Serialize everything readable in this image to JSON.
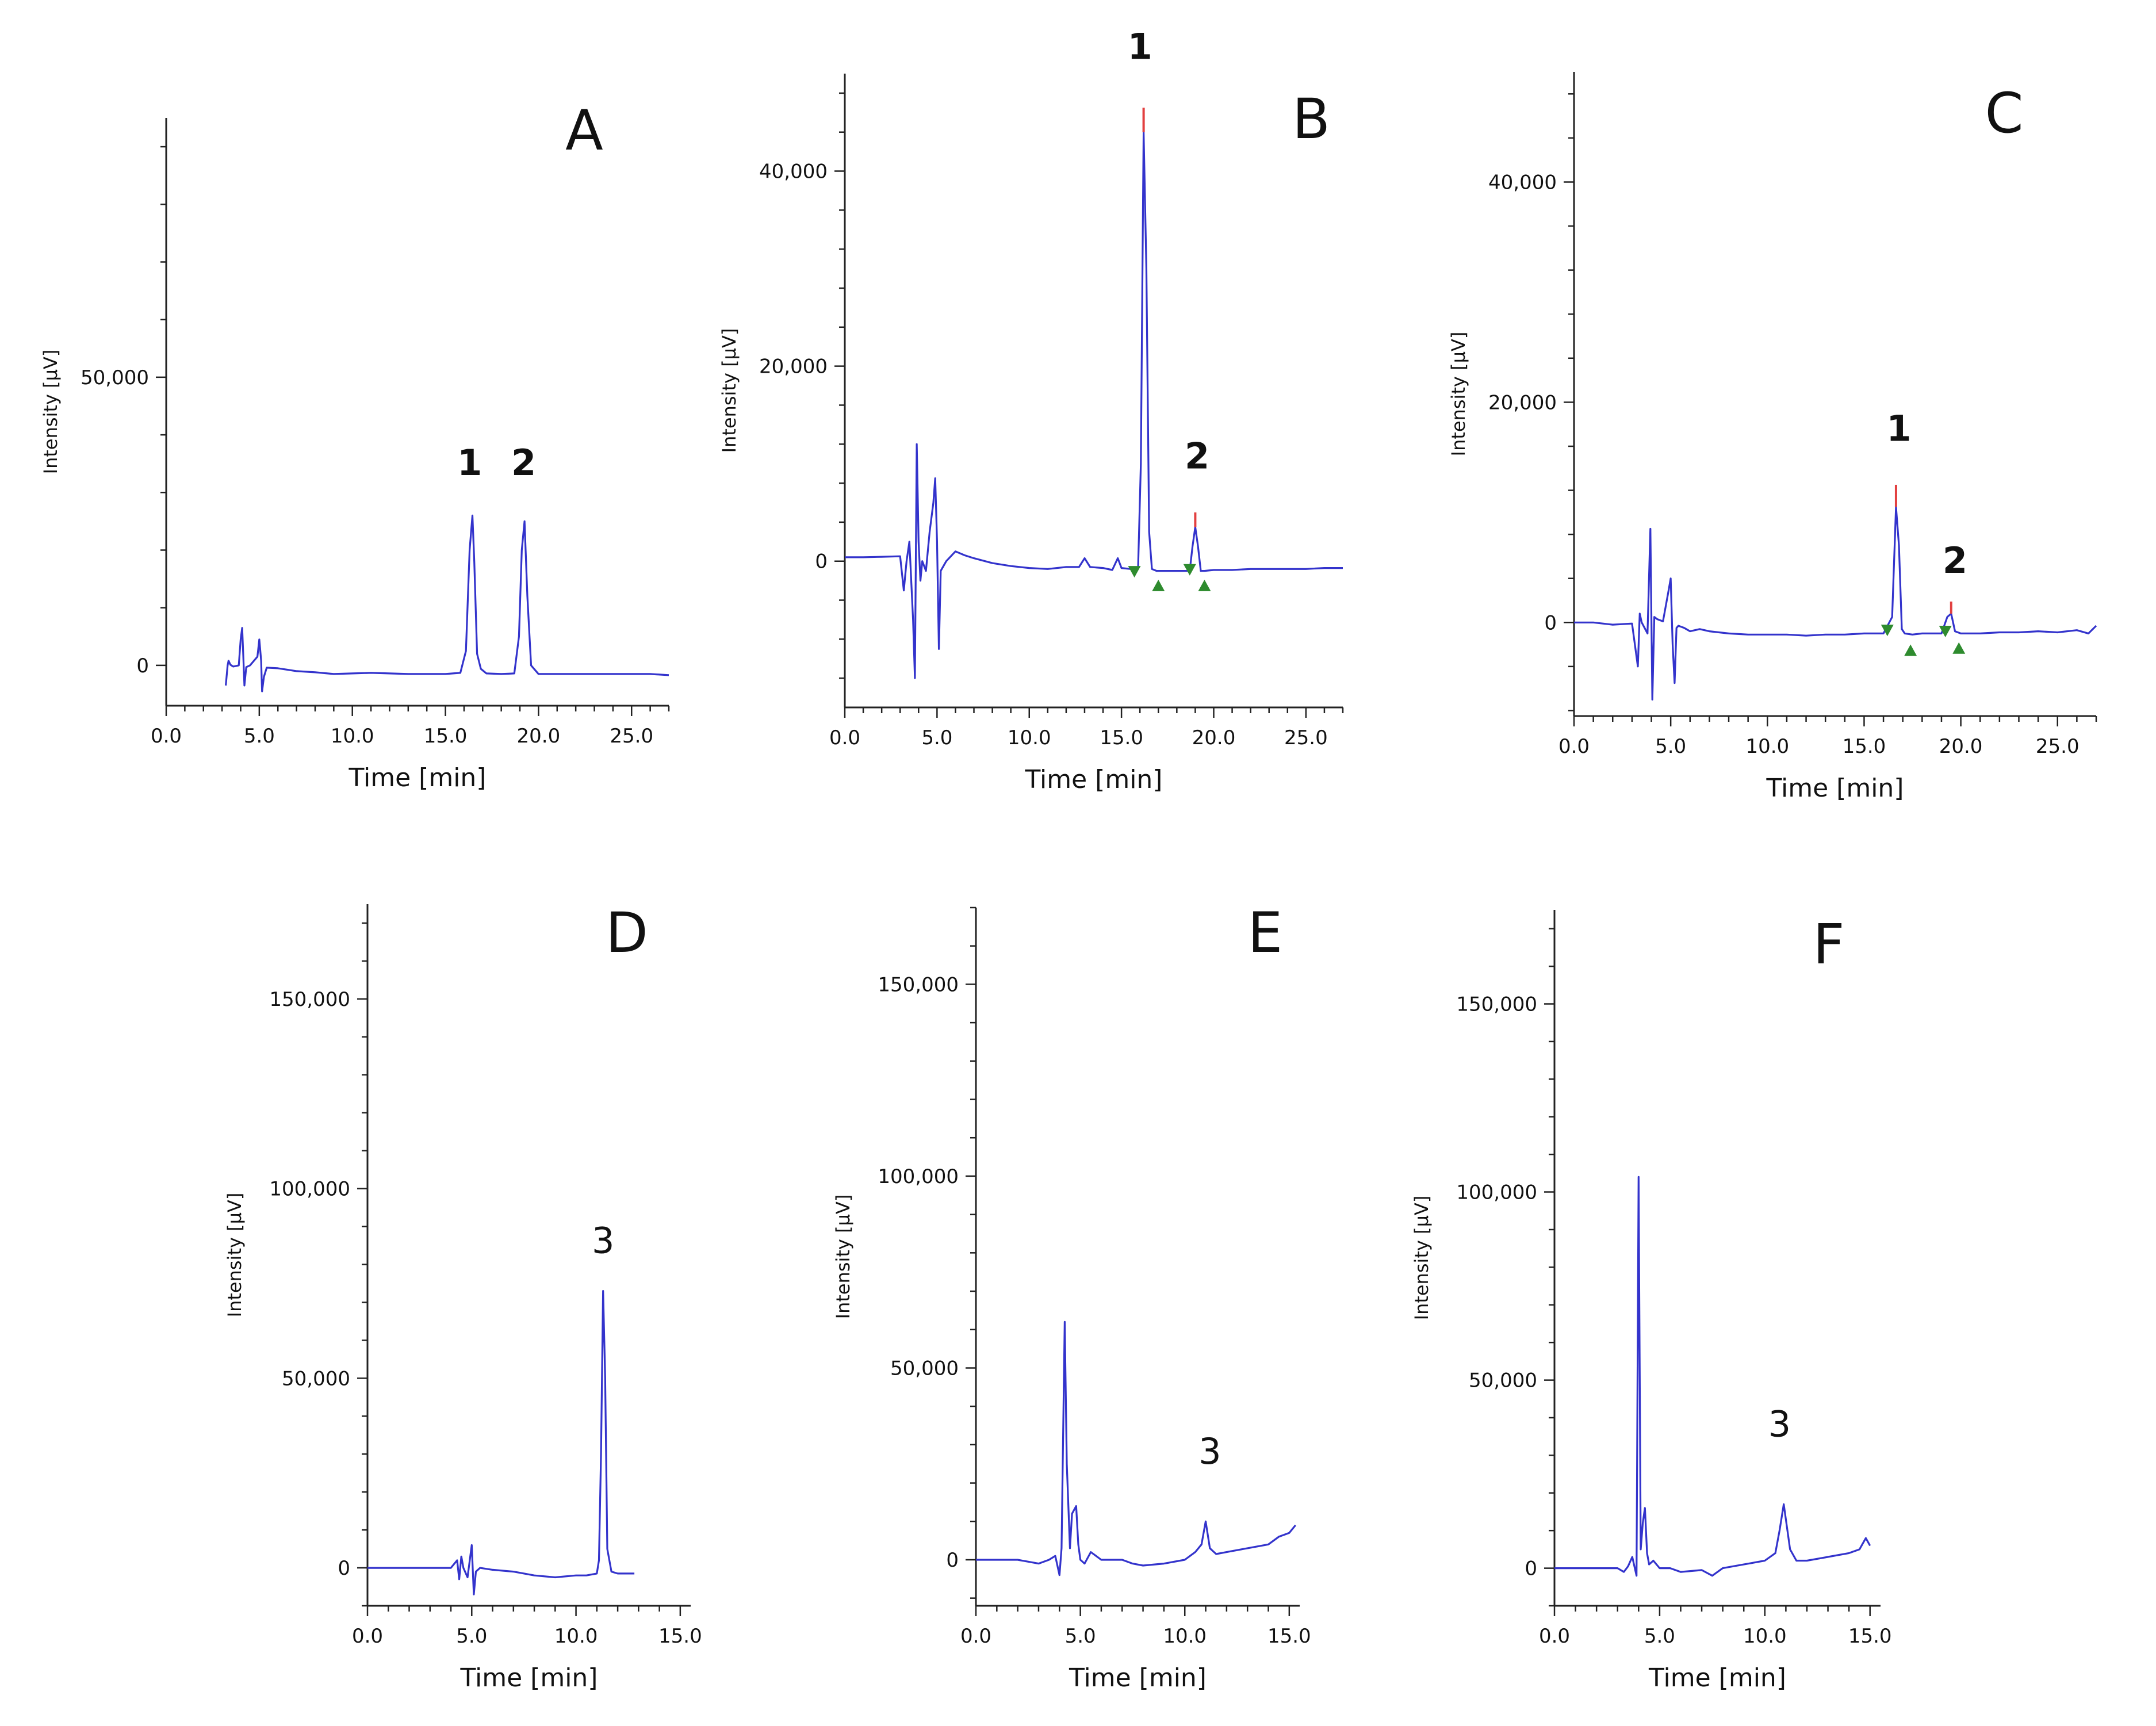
{
  "colors": {
    "trace": "#3333cc",
    "axis": "#222222",
    "peak_top": "#e24040",
    "marker": "#2e8b2e"
  },
  "chart_data": [
    {
      "id": "A",
      "type": "line",
      "panel_label": "A",
      "xlabel": "Time [min]",
      "ylabel": "Intensity [μV]",
      "xlim": [
        0,
        27
      ],
      "ylim": [
        -7000,
        95000
      ],
      "xticks": [
        0,
        5,
        10,
        15,
        20,
        25
      ],
      "xtick_labels": [
        "0.0",
        "5.0",
        "10.0",
        "15.0",
        "20.0",
        "25.0"
      ],
      "yticks": [
        0,
        50000
      ],
      "ytick_labels": [
        "0",
        "50,000"
      ],
      "series": [
        {
          "name": "chromatogram",
          "x": [
            3.2,
            3.3,
            3.35,
            3.45,
            3.6,
            3.9,
            4.0,
            4.08,
            4.15,
            4.2,
            4.3,
            4.5,
            4.9,
            5.0,
            5.1,
            5.15,
            5.25,
            5.4,
            6.0,
            7.0,
            8.0,
            9.0,
            10.0,
            11.0,
            12.0,
            13.0,
            14.0,
            15.0,
            15.8,
            16.1,
            16.3,
            16.45,
            16.55,
            16.7,
            16.9,
            17.2,
            18.0,
            18.7,
            18.95,
            19.1,
            19.25,
            19.4,
            19.6,
            20.0,
            21.0,
            22.0,
            23.0,
            24.0,
            25.0,
            26.0,
            27.0
          ],
          "y": [
            -3500,
            0,
            800,
            100,
            -200,
            0,
            4500,
            6500,
            1000,
            -3500,
            -300,
            0,
            1500,
            4500,
            800,
            -4500,
            -2000,
            -400,
            -500,
            -1000,
            -1200,
            -1500,
            -1400,
            -1300,
            -1400,
            -1500,
            -1500,
            -1500,
            -1300,
            2500,
            20000,
            26000,
            18000,
            2000,
            -600,
            -1400,
            -1500,
            -1400,
            5000,
            20000,
            25000,
            12000,
            0,
            -1500,
            -1500,
            -1500,
            -1500,
            -1500,
            -1500,
            -1500,
            -1700
          ]
        }
      ],
      "peak_labels": [
        {
          "label": "1",
          "x": 16.3,
          "y": 33000
        },
        {
          "label": "2",
          "x": 19.2,
          "y": 33000
        }
      ],
      "peak_tops": [],
      "markers": []
    },
    {
      "id": "B",
      "type": "line",
      "panel_label": "B",
      "xlabel": "Time [min]",
      "ylabel": "Intensity [μV]",
      "xlim": [
        0,
        27
      ],
      "ylim": [
        -15000,
        50000
      ],
      "xticks": [
        0,
        5,
        10,
        15,
        20,
        25
      ],
      "xtick_labels": [
        "0.0",
        "5.0",
        "10.0",
        "15.0",
        "20.0",
        "25.0"
      ],
      "yticks": [
        0,
        20000,
        40000
      ],
      "ytick_labels": [
        "0",
        "20,000",
        "40,000"
      ],
      "series": [
        {
          "name": "chromatogram",
          "x": [
            0,
            1.0,
            2.0,
            3.0,
            3.2,
            3.35,
            3.5,
            3.7,
            3.8,
            3.9,
            4.0,
            4.1,
            4.2,
            4.4,
            4.6,
            4.8,
            4.9,
            5.0,
            5.1,
            5.2,
            5.5,
            6.0,
            6.5,
            7.0,
            8.0,
            9.0,
            10.0,
            11.0,
            12.0,
            12.7,
            13.0,
            13.3,
            14.0,
            14.5,
            14.8,
            15.0,
            15.5,
            15.9,
            16.05,
            16.2,
            16.35,
            16.5,
            16.65,
            16.9,
            17.2,
            18.0,
            18.7,
            18.85,
            19.0,
            19.15,
            19.3,
            19.5,
            20.0,
            21.0,
            22.0,
            23.0,
            24.0,
            25.0,
            26.0,
            27.0
          ],
          "y": [
            400,
            400,
            450,
            500,
            -3000,
            0,
            2000,
            -6000,
            -12000,
            12000,
            2000,
            -2000,
            0,
            -1000,
            3000,
            6000,
            8500,
            2000,
            -9000,
            -1000,
            0,
            1000,
            600,
            300,
            -200,
            -500,
            -700,
            -800,
            -600,
            -600,
            300,
            -600,
            -700,
            -900,
            300,
            -700,
            -800,
            -700,
            10000,
            44000,
            30000,
            3000,
            -800,
            -1000,
            -1000,
            -1000,
            -1000,
            1500,
            3500,
            1500,
            -1000,
            -1000,
            -900,
            -900,
            -800,
            -800,
            -800,
            -800,
            -700,
            -700
          ]
        }
      ],
      "peak_labels": [
        {
          "label": "1",
          "x": 16.0,
          "y": 51500
        },
        {
          "label": "2",
          "x": 19.1,
          "y": 9500
        }
      ],
      "peak_tops": [
        {
          "x": 16.2,
          "y_from": 44000,
          "y_to": 46500
        },
        {
          "x": 19.0,
          "y_from": 3500,
          "y_to": 5000
        }
      ],
      "markers": [
        {
          "x": 15.7,
          "y": -500,
          "dir": "down"
        },
        {
          "x": 17.0,
          "y": -1900,
          "dir": "up"
        },
        {
          "x": 18.7,
          "y": -300,
          "dir": "down"
        },
        {
          "x": 19.5,
          "y": -1900,
          "dir": "up"
        }
      ]
    },
    {
      "id": "C",
      "type": "line",
      "panel_label": "C",
      "xlabel": "Time [min]",
      "ylabel": "Intensity [μV]",
      "xlim": [
        0,
        27
      ],
      "ylim": [
        -8500,
        50000
      ],
      "xticks": [
        0,
        5,
        10,
        15,
        20,
        25
      ],
      "xtick_labels": [
        "0.0",
        "5.0",
        "10.0",
        "15.0",
        "20.0",
        "25.0"
      ],
      "yticks": [
        0,
        20000,
        40000
      ],
      "ytick_labels": [
        "0",
        "20,000",
        "40,000"
      ],
      "series": [
        {
          "name": "chromatogram",
          "x": [
            0,
            1.0,
            2.0,
            3.0,
            3.3,
            3.4,
            3.5,
            3.8,
            3.95,
            4.05,
            4.15,
            4.3,
            4.6,
            4.9,
            5.0,
            5.1,
            5.2,
            5.3,
            5.4,
            5.7,
            6.0,
            6.5,
            7.0,
            8.0,
            9.0,
            10.0,
            11.0,
            12.0,
            13.0,
            14.0,
            15.0,
            16.0,
            16.45,
            16.65,
            16.8,
            16.95,
            17.1,
            17.5,
            18.0,
            19.0,
            19.3,
            19.5,
            19.7,
            20.0,
            21.0,
            22.0,
            23.0,
            24.0,
            25.0,
            26.0,
            26.6,
            27.0
          ],
          "y": [
            0,
            0,
            -200,
            -100,
            -4000,
            800,
            0,
            -1000,
            8500,
            -7000,
            500,
            300,
            100,
            3000,
            4000,
            -2000,
            -5500,
            -500,
            -300,
            -500,
            -800,
            -600,
            -800,
            -1000,
            -1100,
            -1100,
            -1100,
            -1200,
            -1100,
            -1100,
            -1000,
            -1000,
            500,
            10500,
            7000,
            -600,
            -1000,
            -1100,
            -1000,
            -1000,
            500,
            800,
            -800,
            -1000,
            -1000,
            -900,
            -900,
            -800,
            -900,
            -700,
            -1000,
            -300
          ]
        }
      ],
      "peak_labels": [
        {
          "label": "1",
          "x": 16.8,
          "y": 16500
        },
        {
          "label": "2",
          "x": 19.7,
          "y": 4500
        }
      ],
      "peak_tops": [
        {
          "x": 16.65,
          "y_from": 10500,
          "y_to": 12500
        },
        {
          "x": 19.5,
          "y_from": 800,
          "y_to": 1900
        }
      ],
      "markers": [
        {
          "x": 16.2,
          "y": -200,
          "dir": "down"
        },
        {
          "x": 17.4,
          "y": -2000,
          "dir": "up"
        },
        {
          "x": 19.2,
          "y": -300,
          "dir": "down"
        },
        {
          "x": 19.9,
          "y": -1800,
          "dir": "up"
        }
      ]
    },
    {
      "id": "D",
      "type": "line",
      "panel_label": "D",
      "xlabel": "Time [min]",
      "ylabel": "Intensity [μV]",
      "xlim": [
        0,
        15.5
      ],
      "ylim": [
        -10000,
        175000
      ],
      "xticks": [
        0,
        5,
        10,
        15
      ],
      "xtick_labels": [
        "0.0",
        "5.0",
        "10.0",
        "15.0"
      ],
      "yticks": [
        0,
        50000,
        100000,
        150000
      ],
      "ytick_labels": [
        "0",
        "50,000",
        "100,000",
        "150,000"
      ],
      "series": [
        {
          "name": "chromatogram",
          "x": [
            0,
            1.0,
            2.0,
            3.0,
            4.0,
            4.3,
            4.4,
            4.5,
            4.6,
            4.8,
            5.0,
            5.1,
            5.2,
            5.4,
            6.0,
            7.0,
            8.0,
            9.0,
            10.0,
            10.5,
            11.0,
            11.1,
            11.2,
            11.3,
            11.4,
            11.5,
            11.7,
            12.0,
            12.5,
            12.8
          ],
          "y": [
            0,
            0,
            0,
            0,
            0,
            2000,
            -3000,
            3000,
            0,
            -2500,
            6000,
            -7000,
            -1000,
            0,
            -500,
            -1000,
            -2000,
            -2500,
            -2000,
            -2000,
            -1500,
            2000,
            30000,
            73000,
            50000,
            5000,
            -1000,
            -1500,
            -1500,
            -1500
          ]
        }
      ],
      "peak_labels": [
        {
          "label": "3",
          "x": 11.3,
          "y": 83000
        }
      ],
      "peak_tops": [],
      "markers": []
    },
    {
      "id": "E",
      "type": "line",
      "panel_label": "E",
      "xlabel": "Time [min]",
      "ylabel": "Intensity [μV]",
      "xlim": [
        0,
        15.5
      ],
      "ylim": [
        -12000,
        170000
      ],
      "xticks": [
        0,
        5,
        10,
        15
      ],
      "xtick_labels": [
        "0.0",
        "5.0",
        "10.0",
        "15.0"
      ],
      "yticks": [
        0,
        50000,
        100000,
        150000
      ],
      "ytick_labels": [
        "0",
        "50,000",
        "100,000",
        "150,000"
      ],
      "series": [
        {
          "name": "chromatogram",
          "x": [
            0,
            1.0,
            2.0,
            3.0,
            3.5,
            3.8,
            4.0,
            4.1,
            4.25,
            4.35,
            4.5,
            4.6,
            4.8,
            4.9,
            5.0,
            5.2,
            5.5,
            6.0,
            7.0,
            7.5,
            8.0,
            9.0,
            10.0,
            10.5,
            10.8,
            11.0,
            11.2,
            11.5,
            12.0,
            13.0,
            14.0,
            14.5,
            15.0,
            15.3
          ],
          "y": [
            0,
            0,
            0,
            -1000,
            0,
            1000,
            -4000,
            3000,
            62000,
            25000,
            3000,
            12000,
            14000,
            4000,
            0,
            -1000,
            2000,
            0,
            0,
            -1000,
            -1500,
            -1000,
            0,
            2000,
            4000,
            10000,
            3000,
            1500,
            2000,
            3000,
            4000,
            6000,
            7000,
            9000
          ]
        }
      ],
      "peak_labels": [
        {
          "label": "3",
          "x": 11.2,
          "y": 25000
        }
      ],
      "peak_tops": [],
      "markers": []
    },
    {
      "id": "F",
      "type": "line",
      "panel_label": "F",
      "xlabel": "Time [min]",
      "ylabel": "Intensity [μV]",
      "xlim": [
        0,
        15.5
      ],
      "ylim": [
        -10000,
        175000
      ],
      "xticks": [
        0,
        5,
        10,
        15
      ],
      "xtick_labels": [
        "0.0",
        "5.0",
        "10.0",
        "15.0"
      ],
      "yticks": [
        0,
        50000,
        100000,
        150000
      ],
      "ytick_labels": [
        "0",
        "50,000",
        "100,000",
        "150,000"
      ],
      "series": [
        {
          "name": "chromatogram",
          "x": [
            0,
            1.0,
            2.0,
            3.0,
            3.3,
            3.5,
            3.7,
            3.9,
            4.0,
            4.1,
            4.2,
            4.3,
            4.4,
            4.5,
            4.7,
            5.0,
            5.5,
            6.0,
            7.0,
            7.5,
            8.0,
            9.0,
            10.0,
            10.5,
            10.7,
            10.9,
            11.2,
            11.5,
            12.0,
            13.0,
            14.0,
            14.5,
            14.8,
            15.0
          ],
          "y": [
            0,
            0,
            0,
            0,
            -1000,
            500,
            3000,
            -2000,
            104000,
            5000,
            12000,
            16000,
            4000,
            1000,
            2000,
            0,
            0,
            -1000,
            -500,
            -2000,
            0,
            1000,
            2000,
            4000,
            10000,
            17000,
            5000,
            2000,
            2000,
            3000,
            4000,
            5000,
            8000,
            6000
          ]
        }
      ],
      "peak_labels": [
        {
          "label": "3",
          "x": 10.7,
          "y": 35000
        }
      ],
      "peak_tops": [],
      "markers": []
    }
  ]
}
